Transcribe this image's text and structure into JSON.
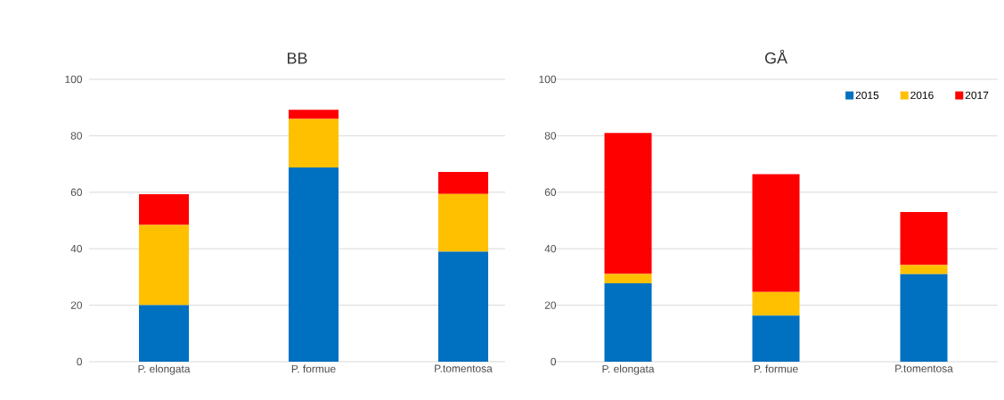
{
  "chart_data": [
    {
      "type": "bar",
      "stacked": true,
      "title": "BB",
      "categories": [
        "P. elongata",
        "P. formue",
        "P.tomentosa"
      ],
      "series": [
        {
          "color": "#0070c0",
          "values": [
            20.0,
            68.8,
            39.0
          ]
        },
        {
          "color": "#ffc000",
          "values": [
            28.4,
            17.2,
            20.4
          ]
        },
        {
          "color": "#ff0000",
          "values": [
            10.9,
            3.2,
            7.8
          ]
        }
      ],
      "ylim": [
        0,
        100
      ],
      "yticks": [
        0,
        20,
        40,
        60,
        80,
        100
      ],
      "grid": "y"
    },
    {
      "type": "bar",
      "stacked": true,
      "title": "GÅ",
      "categories": [
        "P. elongata",
        "P. formue",
        "P.tomentosa"
      ],
      "series": [
        {
          "name": "2015",
          "color": "#0070c0",
          "values": [
            27.8,
            16.3,
            31.0
          ]
        },
        {
          "name": "2016",
          "color": "#ffc000",
          "values": [
            3.3,
            8.4,
            3.2
          ]
        },
        {
          "name": "2017",
          "color": "#ff0000",
          "values": [
            49.9,
            41.7,
            18.8
          ]
        }
      ],
      "ylim": [
        0,
        100
      ],
      "yticks": [
        0,
        20,
        40,
        60,
        80,
        100
      ],
      "grid": "y",
      "legend": "top right"
    }
  ]
}
